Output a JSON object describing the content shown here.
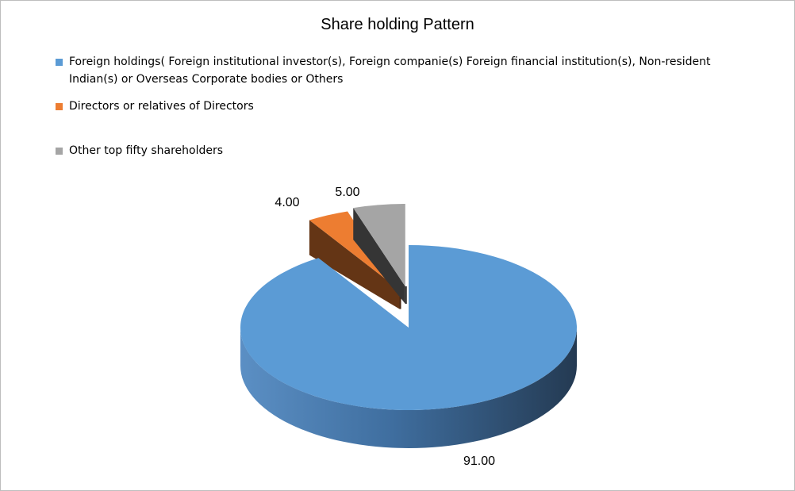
{
  "chart_data": {
    "type": "pie",
    "title": "Share holding Pattern",
    "slices": [
      {
        "label": "Foreign holdings( Foreign institutional investor(s), Foreign companie(s) Foreign financial institution(s),  Non-resident Indian(s) or Overseas Corporate bodies or Others",
        "value": 91.0,
        "value_label": "91.00",
        "color": "#5b9bd5"
      },
      {
        "label": "Directors or relatives of Directors",
        "value": 4.0,
        "value_label": "4.00",
        "color": "#ed7d31"
      },
      {
        "label": "Other top fifty shareholders",
        "value": 5.0,
        "value_label": "5.00",
        "color": "#a5a5a5"
      }
    ],
    "style": "3d-exploded",
    "legend_position": "top-left"
  }
}
